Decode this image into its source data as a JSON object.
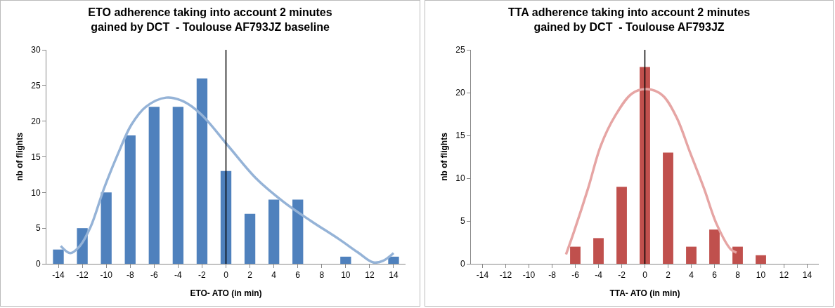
{
  "chart_data": [
    {
      "type": "bar",
      "title": "ETO adherence taking into account 2 minutes\ngained by DCT  - Toulouse AF793JZ baseline",
      "xlabel": "ETO- ATO (in min)",
      "ylabel": "nb of flights",
      "x": [
        -14,
        -12,
        -10,
        -8,
        -6,
        -4,
        -2,
        0,
        2,
        4,
        6,
        8,
        10,
        12,
        14
      ],
      "xlim": [
        -15,
        15
      ],
      "xticks": [
        -14,
        -12,
        -10,
        -8,
        -6,
        -4,
        -2,
        0,
        2,
        4,
        6,
        8,
        10,
        12,
        14
      ],
      "ylim": [
        0,
        30
      ],
      "yticks": [
        0,
        5,
        10,
        15,
        20,
        25,
        30
      ],
      "marker": "none",
      "series": [
        {
          "color": "#4f81bd",
          "values": [
            2,
            5,
            10,
            18,
            22,
            22,
            26,
            13,
            7,
            9,
            9,
            0,
            1,
            0,
            1
          ]
        },
        {
          "type": "line",
          "color": "#95b3d7",
          "x": [
            -13.8,
            -13,
            -12.2,
            -11.3,
            -10.2,
            -9,
            -7.9,
            -6.7,
            -5,
            -3.6,
            -2.1,
            0.2,
            2.5,
            4.8,
            7.1,
            9.4,
            11.1,
            12.3,
            13.1,
            14
          ],
          "values": [
            2.5,
            1.5,
            2.5,
            5.2,
            10.5,
            15.5,
            19.5,
            22,
            23.3,
            22.8,
            21,
            16.5,
            12,
            8.7,
            6,
            3.5,
            1.5,
            0.2,
            0.4,
            1.5
          ]
        }
      ],
      "ref_lines": [
        {
          "axis": "x",
          "value": 0,
          "color": "#000000"
        }
      ]
    },
    {
      "type": "bar",
      "title": "TTA adherence taking into account 2 minutes\ngained by DCT  - Toulouse AF793JZ",
      "xlabel": "TTA- ATO (in min)",
      "ylabel": "nb of flights",
      "x": [
        -14,
        -12,
        -10,
        -8,
        -6,
        -4,
        -2,
        0,
        2,
        4,
        6,
        8,
        10,
        12,
        14
      ],
      "xlim": [
        -15,
        15
      ],
      "xticks": [
        -14,
        -12,
        -10,
        -8,
        -6,
        -4,
        -2,
        0,
        2,
        4,
        6,
        8,
        10,
        12,
        14
      ],
      "ylim": [
        0,
        25
      ],
      "yticks": [
        0,
        5,
        10,
        15,
        20,
        25
      ],
      "marker": "none",
      "series": [
        {
          "color": "#c0504d",
          "values": [
            0,
            0,
            0,
            0,
            2,
            3,
            9,
            23,
            13,
            2,
            4,
            2,
            1,
            0,
            0
          ]
        },
        {
          "type": "line",
          "color": "#e6a5a4",
          "x": [
            -6.8,
            -6.1,
            -4.9,
            -3.8,
            -2.6,
            -1.1,
            0.2,
            1.5,
            2.7,
            3.9,
            5.1,
            6.2,
            7.4,
            7.9
          ],
          "values": [
            1.1,
            3.8,
            8.8,
            13.8,
            17.2,
            19.9,
            20.4,
            19.7,
            17.2,
            13,
            8.8,
            4.6,
            1.7,
            1.3
          ]
        }
      ],
      "ref_lines": [
        {
          "axis": "x",
          "value": 0,
          "color": "#000000"
        }
      ]
    }
  ]
}
